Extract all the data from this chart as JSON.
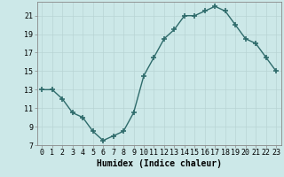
{
  "x": [
    0,
    1,
    2,
    3,
    4,
    5,
    6,
    7,
    8,
    9,
    10,
    11,
    12,
    13,
    14,
    15,
    16,
    17,
    18,
    19,
    20,
    21,
    22,
    23
  ],
  "y": [
    13,
    13,
    12,
    10.5,
    10,
    8.5,
    7.5,
    8,
    8.5,
    10.5,
    14.5,
    16.5,
    18.5,
    19.5,
    21,
    21,
    21.5,
    22,
    21.5,
    20,
    18.5,
    18,
    16.5,
    15
  ],
  "xlabel": "Humidex (Indice chaleur)",
  "xlim": [
    -0.5,
    23.5
  ],
  "ylim": [
    7,
    22.5
  ],
  "yticks": [
    7,
    9,
    11,
    13,
    15,
    17,
    19,
    21
  ],
  "xticks": [
    0,
    1,
    2,
    3,
    4,
    5,
    6,
    7,
    8,
    9,
    10,
    11,
    12,
    13,
    14,
    15,
    16,
    17,
    18,
    19,
    20,
    21,
    22,
    23
  ],
  "line_color": "#2e6b6b",
  "marker": "+",
  "marker_size": 5,
  "bg_color": "#cce8e8",
  "grid_color": "#b8d4d4",
  "xlabel_fontsize": 7,
  "tick_fontsize": 6,
  "line_width": 1.0
}
